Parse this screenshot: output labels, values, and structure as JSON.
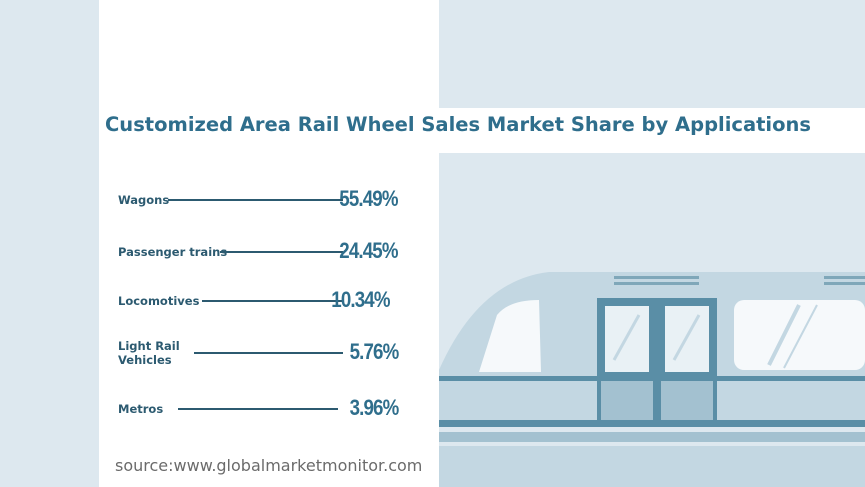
{
  "chart_data": {
    "type": "table",
    "title": "Customized Area Rail Wheel  Sales Market Share by Applications",
    "categories": [
      "Wagons",
      "Passenger trains",
      "Locomotives",
      "Light Rail\nVehicles",
      "Metros"
    ],
    "values": [
      55.49,
      24.45,
      10.34,
      5.76,
      3.96
    ],
    "value_labels": [
      "55.49%",
      "24.45%",
      "10.34%",
      "5.76%",
      "3.96%"
    ],
    "unit": "%"
  },
  "source": "source:www.globalmarketmonitor.com",
  "colors": {
    "title": "#2f6e8c",
    "label": "#2c5a70",
    "background": "#dde8ef",
    "train_body": "#b9d0dc",
    "train_dark": "#5a8ea6"
  },
  "decoration": {
    "illustration": "train-illustration"
  }
}
